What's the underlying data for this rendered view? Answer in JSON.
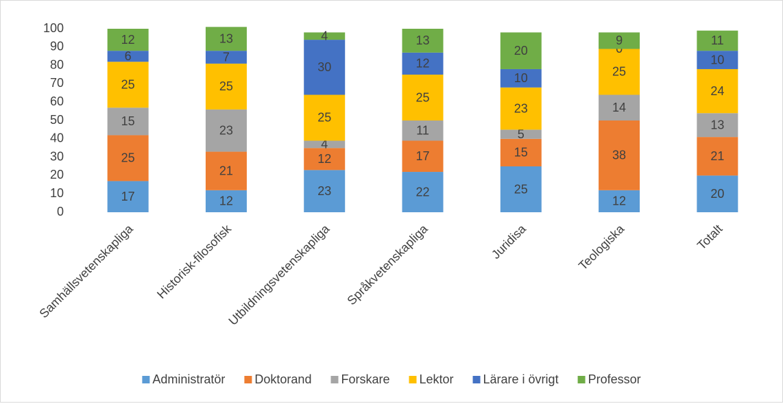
{
  "chart_data": {
    "type": "stacked_bar",
    "categories": [
      "Samhällsvetenskapliga",
      "Historisk-filosofisk",
      "Utbildningsvetenskapliga",
      "Språkvetenskapliga",
      "Juridisa",
      "Teologiska",
      "Totalt"
    ],
    "series": [
      {
        "name": "Administratör",
        "color": "#5b9bd5",
        "values": [
          17,
          12,
          23,
          22,
          25,
          12,
          20
        ]
      },
      {
        "name": "Doktorand",
        "color": "#ed7d31",
        "values": [
          25,
          21,
          12,
          17,
          15,
          38,
          21
        ]
      },
      {
        "name": "Forskare",
        "color": "#a5a5a5",
        "values": [
          15,
          23,
          4,
          11,
          5,
          14,
          13
        ]
      },
      {
        "name": "Lektor",
        "color": "#ffc000",
        "values": [
          25,
          25,
          25,
          25,
          23,
          25,
          24
        ]
      },
      {
        "name": "Lärare i övrigt",
        "color": "#4472c4",
        "values": [
          6,
          7,
          30,
          12,
          10,
          0,
          10
        ]
      },
      {
        "name": "Professor",
        "color": "#70ad47",
        "values": [
          12,
          13,
          4,
          13,
          20,
          9,
          11
        ]
      }
    ],
    "ylim": [
      0,
      100
    ],
    "yticks": [
      0,
      10,
      20,
      30,
      40,
      50,
      60,
      70,
      80,
      90,
      100
    ],
    "grid": false,
    "legend": "bottom"
  }
}
